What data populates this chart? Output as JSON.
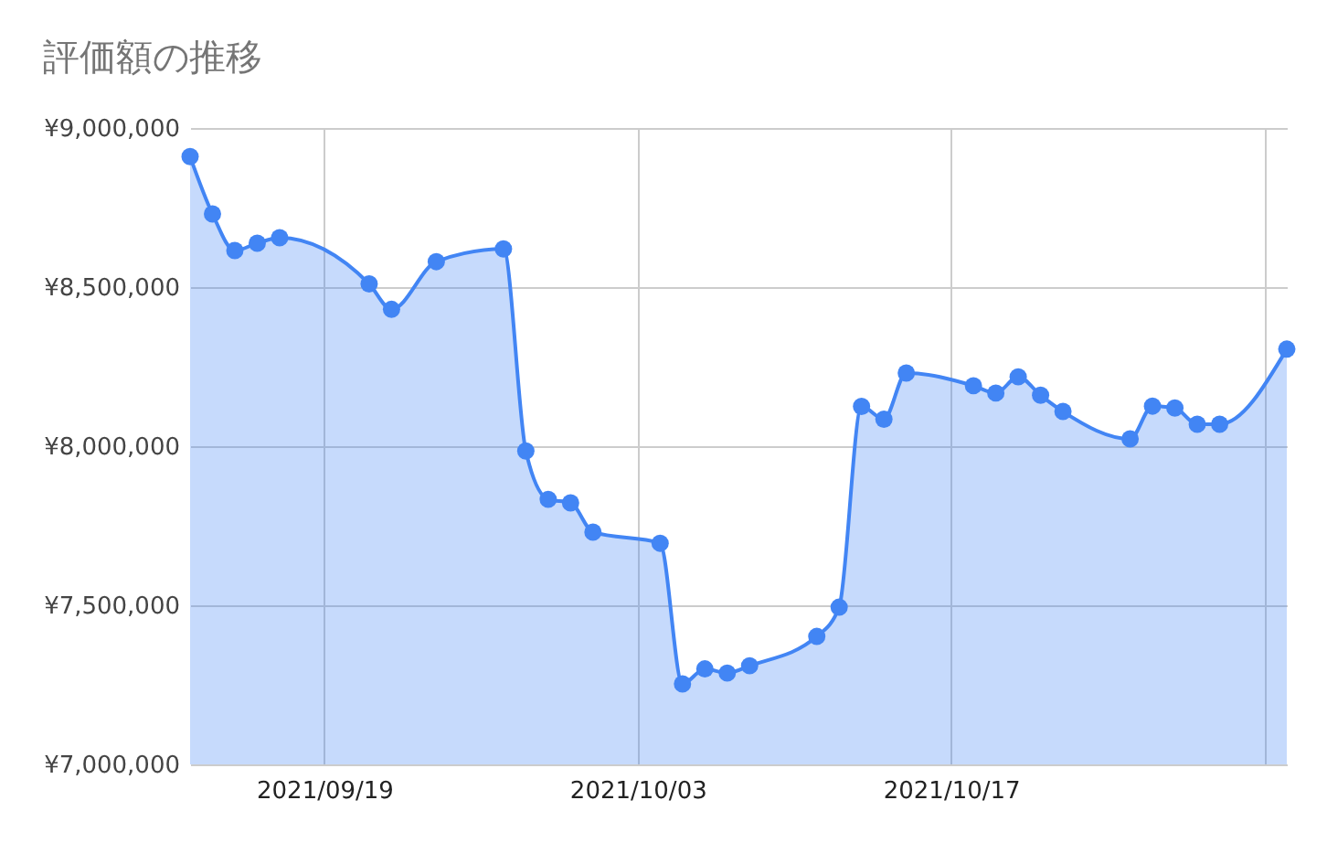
{
  "chart_data": {
    "type": "area",
    "title": "評価額の推移",
    "x": [
      "2021-09-13",
      "2021-09-14",
      "2021-09-15",
      "2021-09-16",
      "2021-09-17",
      "2021-09-21",
      "2021-09-22",
      "2021-09-24",
      "2021-09-27",
      "2021-09-28",
      "2021-09-29",
      "2021-09-30",
      "2021-10-01",
      "2021-10-04",
      "2021-10-05",
      "2021-10-06",
      "2021-10-07",
      "2021-10-08",
      "2021-10-11",
      "2021-10-12",
      "2021-10-13",
      "2021-10-14",
      "2021-10-15",
      "2021-10-18",
      "2021-10-19",
      "2021-10-20",
      "2021-10-21",
      "2021-10-22",
      "2021-10-25",
      "2021-10-26",
      "2021-10-27",
      "2021-10-28",
      "2021-10-29",
      "2021-11-01"
    ],
    "series": [
      {
        "color": "#4285f4",
        "values": [
          8910000,
          8730000,
          8615000,
          8638000,
          8655000,
          8510000,
          8430000,
          8580000,
          8620000,
          7985000,
          7833000,
          7822000,
          7730000,
          7695000,
          7253000,
          7300000,
          7287000,
          7310000,
          7402000,
          7494000,
          8125000,
          8085000,
          8230000,
          8190000,
          8167000,
          8218000,
          8160000,
          8109000,
          8023000,
          8126000,
          8120000,
          8069000,
          8069000,
          8305000
        ]
      }
    ],
    "xlim": [
      "2021-09-13",
      "2021-11-01"
    ],
    "xticks": [
      {
        "value": "2021-09-19",
        "label": "2021/09/19"
      },
      {
        "value": "2021-10-03",
        "label": "2021/10/03"
      },
      {
        "value": "2021-10-17",
        "label": "2021/10/17"
      },
      {
        "value": "2021-10-31",
        "label": null
      }
    ],
    "ylim": [
      7000000,
      9000000
    ],
    "yticks": [
      {
        "value": 7000000,
        "label": "¥7,000,000"
      },
      {
        "value": 7500000,
        "label": "¥7,500,000"
      },
      {
        "value": 8000000,
        "label": "¥8,000,000"
      },
      {
        "value": 8500000,
        "label": "¥8,500,000"
      },
      {
        "value": 9000000,
        "label": "¥9,000,000"
      }
    ],
    "grid": true,
    "marker": "circle",
    "line_style": "solid"
  }
}
